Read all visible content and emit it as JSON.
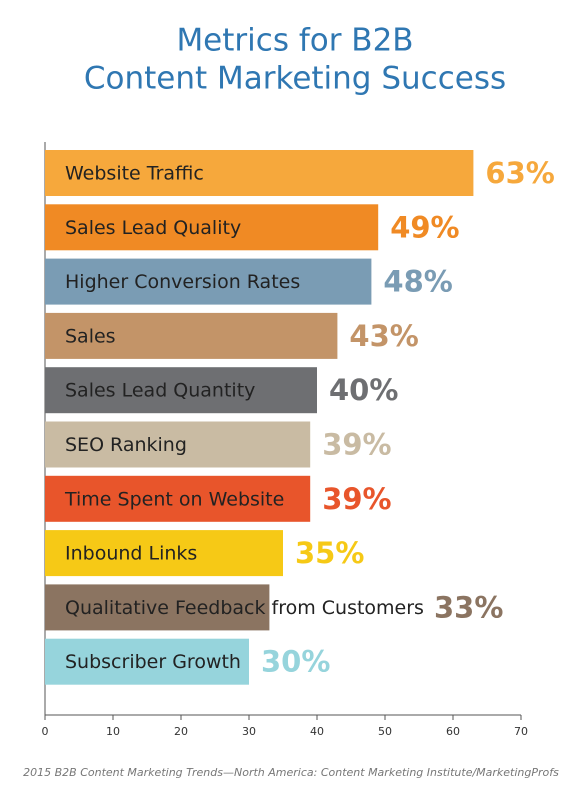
{
  "chart_data": {
    "type": "bar",
    "orientation": "horizontal",
    "title": [
      "Metrics for B2B",
      "Content Marketing Success"
    ],
    "categories": [
      "Website Traffic",
      "Sales Lead Quality",
      "Higher Conversion Rates",
      "Sales",
      "Sales Lead Quantity",
      "SEO Ranking",
      "Time Spent on Website",
      "Inbound Links",
      "Qualitative Feedback from Customers",
      "Subscriber Growth"
    ],
    "values": [
      63,
      49,
      48,
      43,
      40,
      39,
      39,
      35,
      33,
      30
    ],
    "value_labels": [
      "63%",
      "49%",
      "48%",
      "43%",
      "40%",
      "39%",
      "39%",
      "35%",
      "33%",
      "30%"
    ],
    "colors": [
      "#f6a83c",
      "#f08a24",
      "#7a9cb4",
      "#c39468",
      "#6e6f72",
      "#c9bba3",
      "#e8552b",
      "#f6c916",
      "#8b7461",
      "#96d4dc"
    ],
    "xlim": [
      0,
      70
    ],
    "xticks": [
      0,
      10,
      20,
      30,
      40,
      50,
      60,
      70
    ],
    "source": "2015 B2B Content Marketing Trends—North America: Content Marketing Institute/MarketingProfs"
  }
}
